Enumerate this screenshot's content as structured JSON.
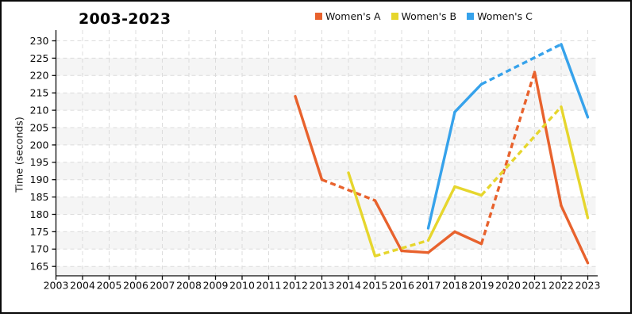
{
  "title": "2003-2023",
  "chart_data": {
    "type": "line",
    "title": "2003-2023",
    "xlabel": "",
    "ylabel": "Time (seconds)",
    "x": [
      2003,
      2004,
      2005,
      2006,
      2007,
      2008,
      2009,
      2010,
      2011,
      2012,
      2013,
      2014,
      2015,
      2016,
      2017,
      2018,
      2019,
      2020,
      2021,
      2022,
      2023
    ],
    "yticks": [
      165,
      170,
      175,
      180,
      185,
      190,
      195,
      200,
      205,
      210,
      215,
      220,
      225,
      230
    ],
    "ylim": [
      162,
      233
    ],
    "grid": true,
    "legend_position": "top",
    "line_style_rule": "segments that span missing years are drawn dashed (interpolated); adjacent-year segments are solid",
    "series": [
      {
        "name": "Women's A",
        "color": "#e8622d",
        "values": [
          null,
          null,
          null,
          null,
          null,
          null,
          null,
          null,
          null,
          214,
          190,
          null,
          184,
          169.5,
          169,
          175,
          171.5,
          null,
          221,
          182.5,
          166
        ]
      },
      {
        "name": "Women's B",
        "color": "#e6d62d",
        "values": [
          null,
          null,
          null,
          null,
          null,
          null,
          null,
          null,
          null,
          null,
          null,
          192,
          168,
          null,
          172.5,
          188,
          185.5,
          null,
          null,
          211,
          179
        ]
      },
      {
        "name": "Women's C",
        "color": "#36a2eb",
        "values": [
          null,
          null,
          null,
          null,
          null,
          null,
          null,
          null,
          null,
          null,
          null,
          null,
          null,
          null,
          176,
          209.5,
          217.5,
          null,
          null,
          229,
          208
        ]
      }
    ]
  }
}
